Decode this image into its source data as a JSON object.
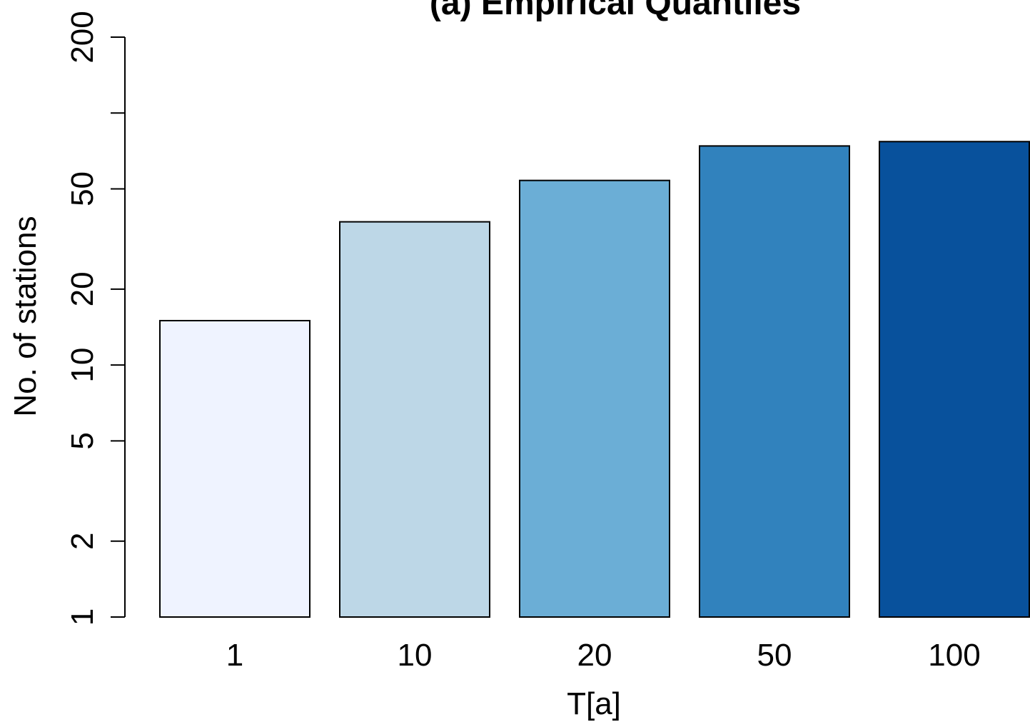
{
  "chart_data": {
    "type": "bar",
    "title": "(a) Empirical Quantiles",
    "xlabel": "T[a]",
    "ylabel": "No. of stations",
    "y_scale": "log",
    "ylim": [
      1,
      200
    ],
    "y_ticks": [
      1,
      2,
      5,
      10,
      20,
      50,
      200
    ],
    "y_minor_ticks": [
      100
    ],
    "categories": [
      "1",
      "10",
      "20",
      "50",
      "100"
    ],
    "values": [
      15,
      37,
      54,
      74,
      77
    ],
    "colors": [
      "#eff3ff",
      "#bdd7e7",
      "#6baed6",
      "#3182bd",
      "#08519c"
    ],
    "grid": false,
    "legend": "none"
  }
}
